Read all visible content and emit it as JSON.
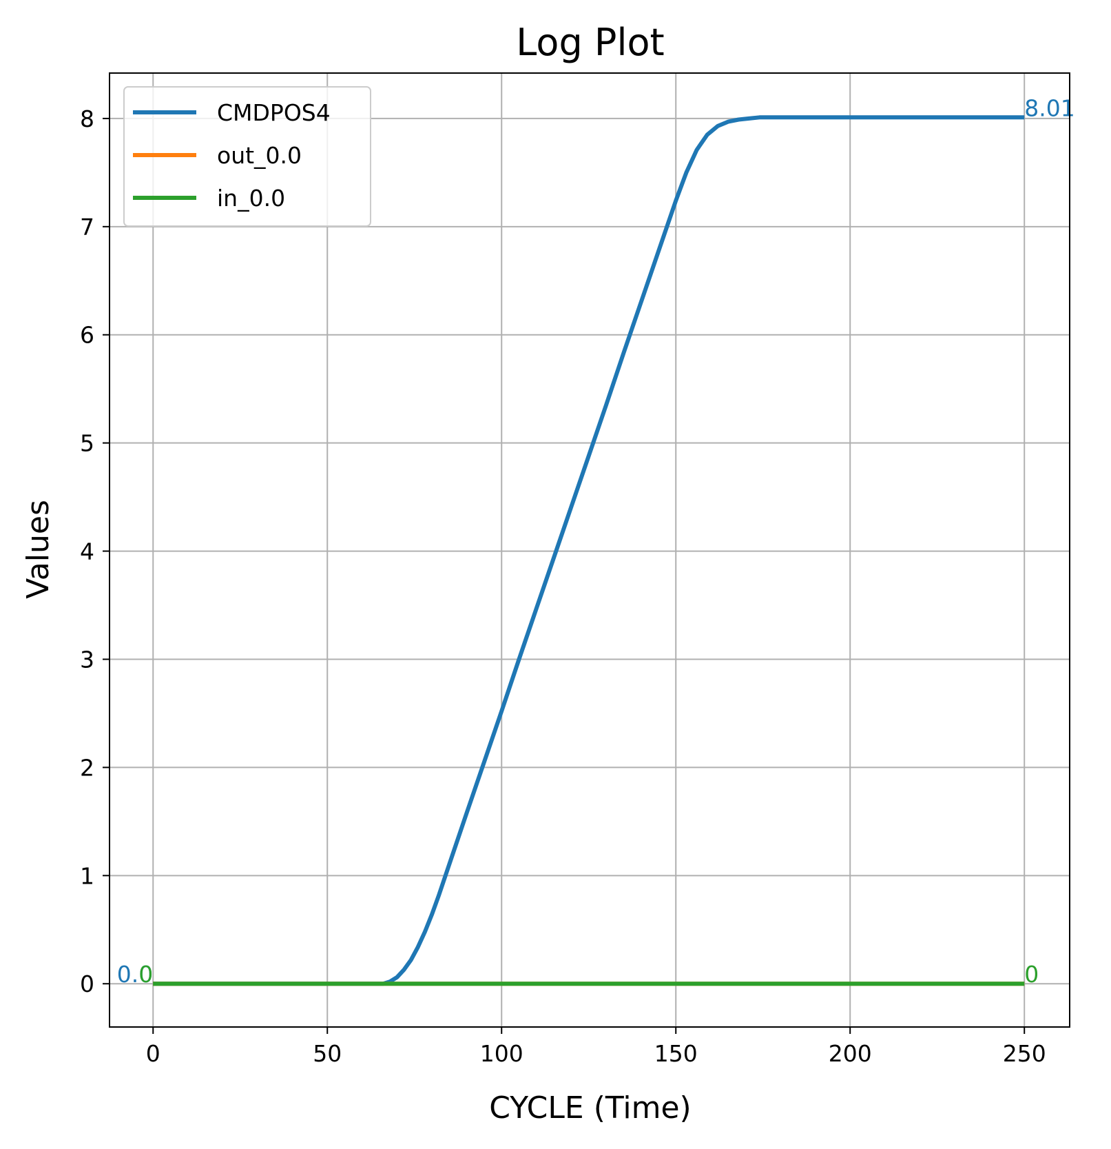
{
  "chart_data": {
    "type": "line",
    "title": "Log Plot",
    "xlabel": "CYCLE (Time)",
    "ylabel": "Values",
    "xlim": [
      -12.5,
      263
    ],
    "ylim": [
      -0.4,
      8.42
    ],
    "xticks": [
      0,
      50,
      100,
      150,
      200,
      250
    ],
    "yticks": [
      0,
      1,
      2,
      3,
      4,
      5,
      6,
      7,
      8
    ],
    "grid": true,
    "legend_position": "upper-left",
    "series": [
      {
        "name": "CMDPOS4",
        "color": "#1f77b4",
        "x": [
          0,
          66,
          68,
          70,
          72,
          74,
          76,
          78,
          80,
          82,
          84,
          86,
          90,
          95,
          100,
          105,
          110,
          115,
          120,
          125,
          130,
          135,
          140,
          145,
          150,
          153,
          156,
          159,
          162,
          165,
          168,
          171,
          174,
          176,
          200,
          250
        ],
        "y": [
          0.0,
          0.0,
          0.02,
          0.06,
          0.13,
          0.22,
          0.34,
          0.48,
          0.64,
          0.82,
          1.01,
          1.2,
          1.58,
          2.05,
          2.52,
          3.0,
          3.47,
          3.94,
          4.41,
          4.88,
          5.35,
          5.83,
          6.3,
          6.77,
          7.24,
          7.5,
          7.71,
          7.85,
          7.93,
          7.97,
          7.99,
          8.0,
          8.01,
          8.01,
          8.01,
          8.01
        ]
      },
      {
        "name": "out_0.0",
        "color": "#ff7f0e",
        "x": [
          0,
          250
        ],
        "y": [
          0,
          0
        ]
      },
      {
        "name": "in_0.0",
        "color": "#2ca02c",
        "x": [
          0,
          250
        ],
        "y": [
          0,
          0
        ]
      }
    ],
    "annotations": [
      {
        "text": "8.01",
        "x": 250,
        "y": 8.01,
        "color": "#1f77b4",
        "anchor": "start"
      },
      {
        "text": "0.0",
        "x": 0,
        "y": 0,
        "color": "#1f77b4",
        "anchor": "end"
      },
      {
        "text": "0",
        "x": 0,
        "y": 0,
        "color": "#2ca02c",
        "anchor": "end"
      },
      {
        "text": "0",
        "x": 250,
        "y": 0,
        "color": "#2ca02c",
        "anchor": "start"
      }
    ]
  }
}
